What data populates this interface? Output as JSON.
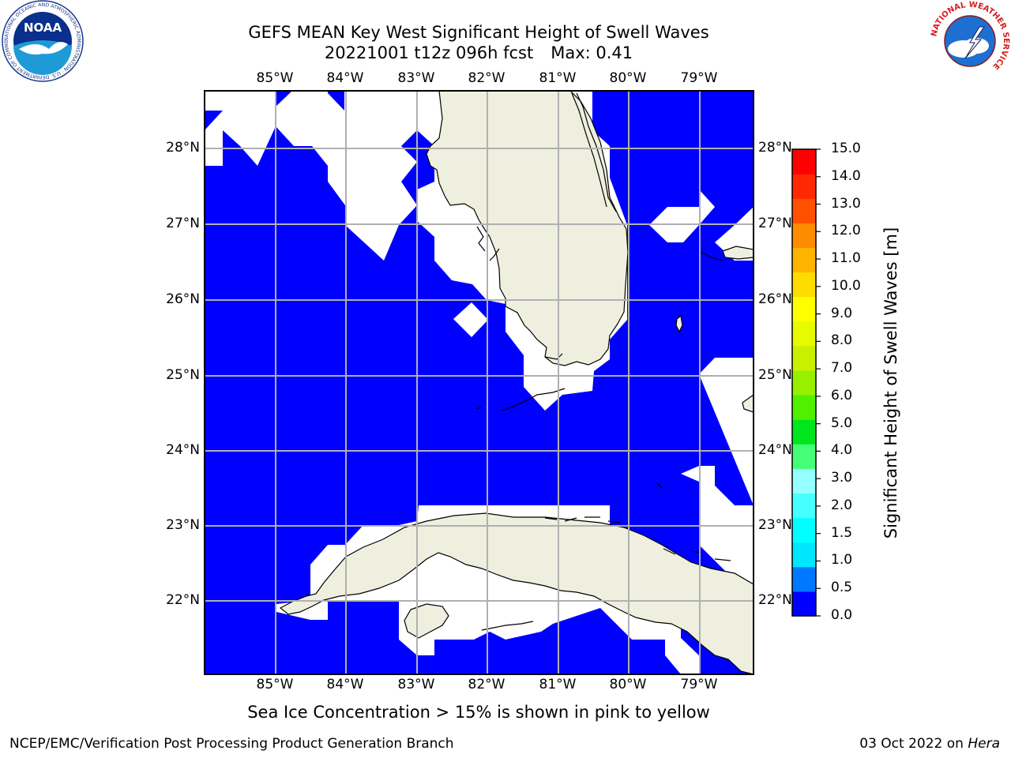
{
  "header": {
    "title": "GEFS MEAN Key West Significant Height of Swell Waves",
    "date_run": "20221001 t12z 096h fcst",
    "max_label": "Max: 0.41"
  },
  "map": {
    "lon_labels": [
      "85°W",
      "84°W",
      "83°W",
      "82°W",
      "81°W",
      "80°W",
      "79°W"
    ],
    "lat_labels": [
      "28°N",
      "27°N",
      "26°N",
      "25°N",
      "24°N",
      "23°N",
      "22°N"
    ],
    "ocean_color": "#0000ff",
    "land_color": "#efefdf",
    "grid_color": "#b0b0b0"
  },
  "colorbar": {
    "label": "Significant Height of Swell Waves [m]",
    "ticks": [
      "15.0",
      "14.0",
      "13.0",
      "12.0",
      "11.0",
      "10.0",
      "9.0",
      "8.0",
      "7.0",
      "6.0",
      "5.0",
      "4.0",
      "3.0",
      "2.0",
      "1.5",
      "1.0",
      "0.5",
      "0.0"
    ],
    "colors_bottom_to_top": [
      "#0000ff",
      "#0078ff",
      "#00e6ff",
      "#00ffff",
      "#46ffff",
      "#96ffff",
      "#46ff78",
      "#00e61e",
      "#50f000",
      "#96f000",
      "#c8f000",
      "#e6fa00",
      "#ffff00",
      "#ffdc00",
      "#ffb400",
      "#ff8c00",
      "#ff5000",
      "#ff2800",
      "#ff0000"
    ]
  },
  "note": "Sea Ice Concentration > 15% is shown in pink to yellow",
  "footer": {
    "left": "NCEP/EMC/Verification Post Processing Product Generation Branch",
    "date": "03 Oct 2022 on",
    "machine": "Hera"
  },
  "logos": {
    "noaa_text": "NOAA",
    "noaa_ring": "NATIONAL OCEANIC AND ATMOSPHERIC ADMINISTRATION · U.S. DEPARTMENT OF COMMERCE",
    "nws_ring": "NATIONAL WEATHER SERVICE"
  }
}
